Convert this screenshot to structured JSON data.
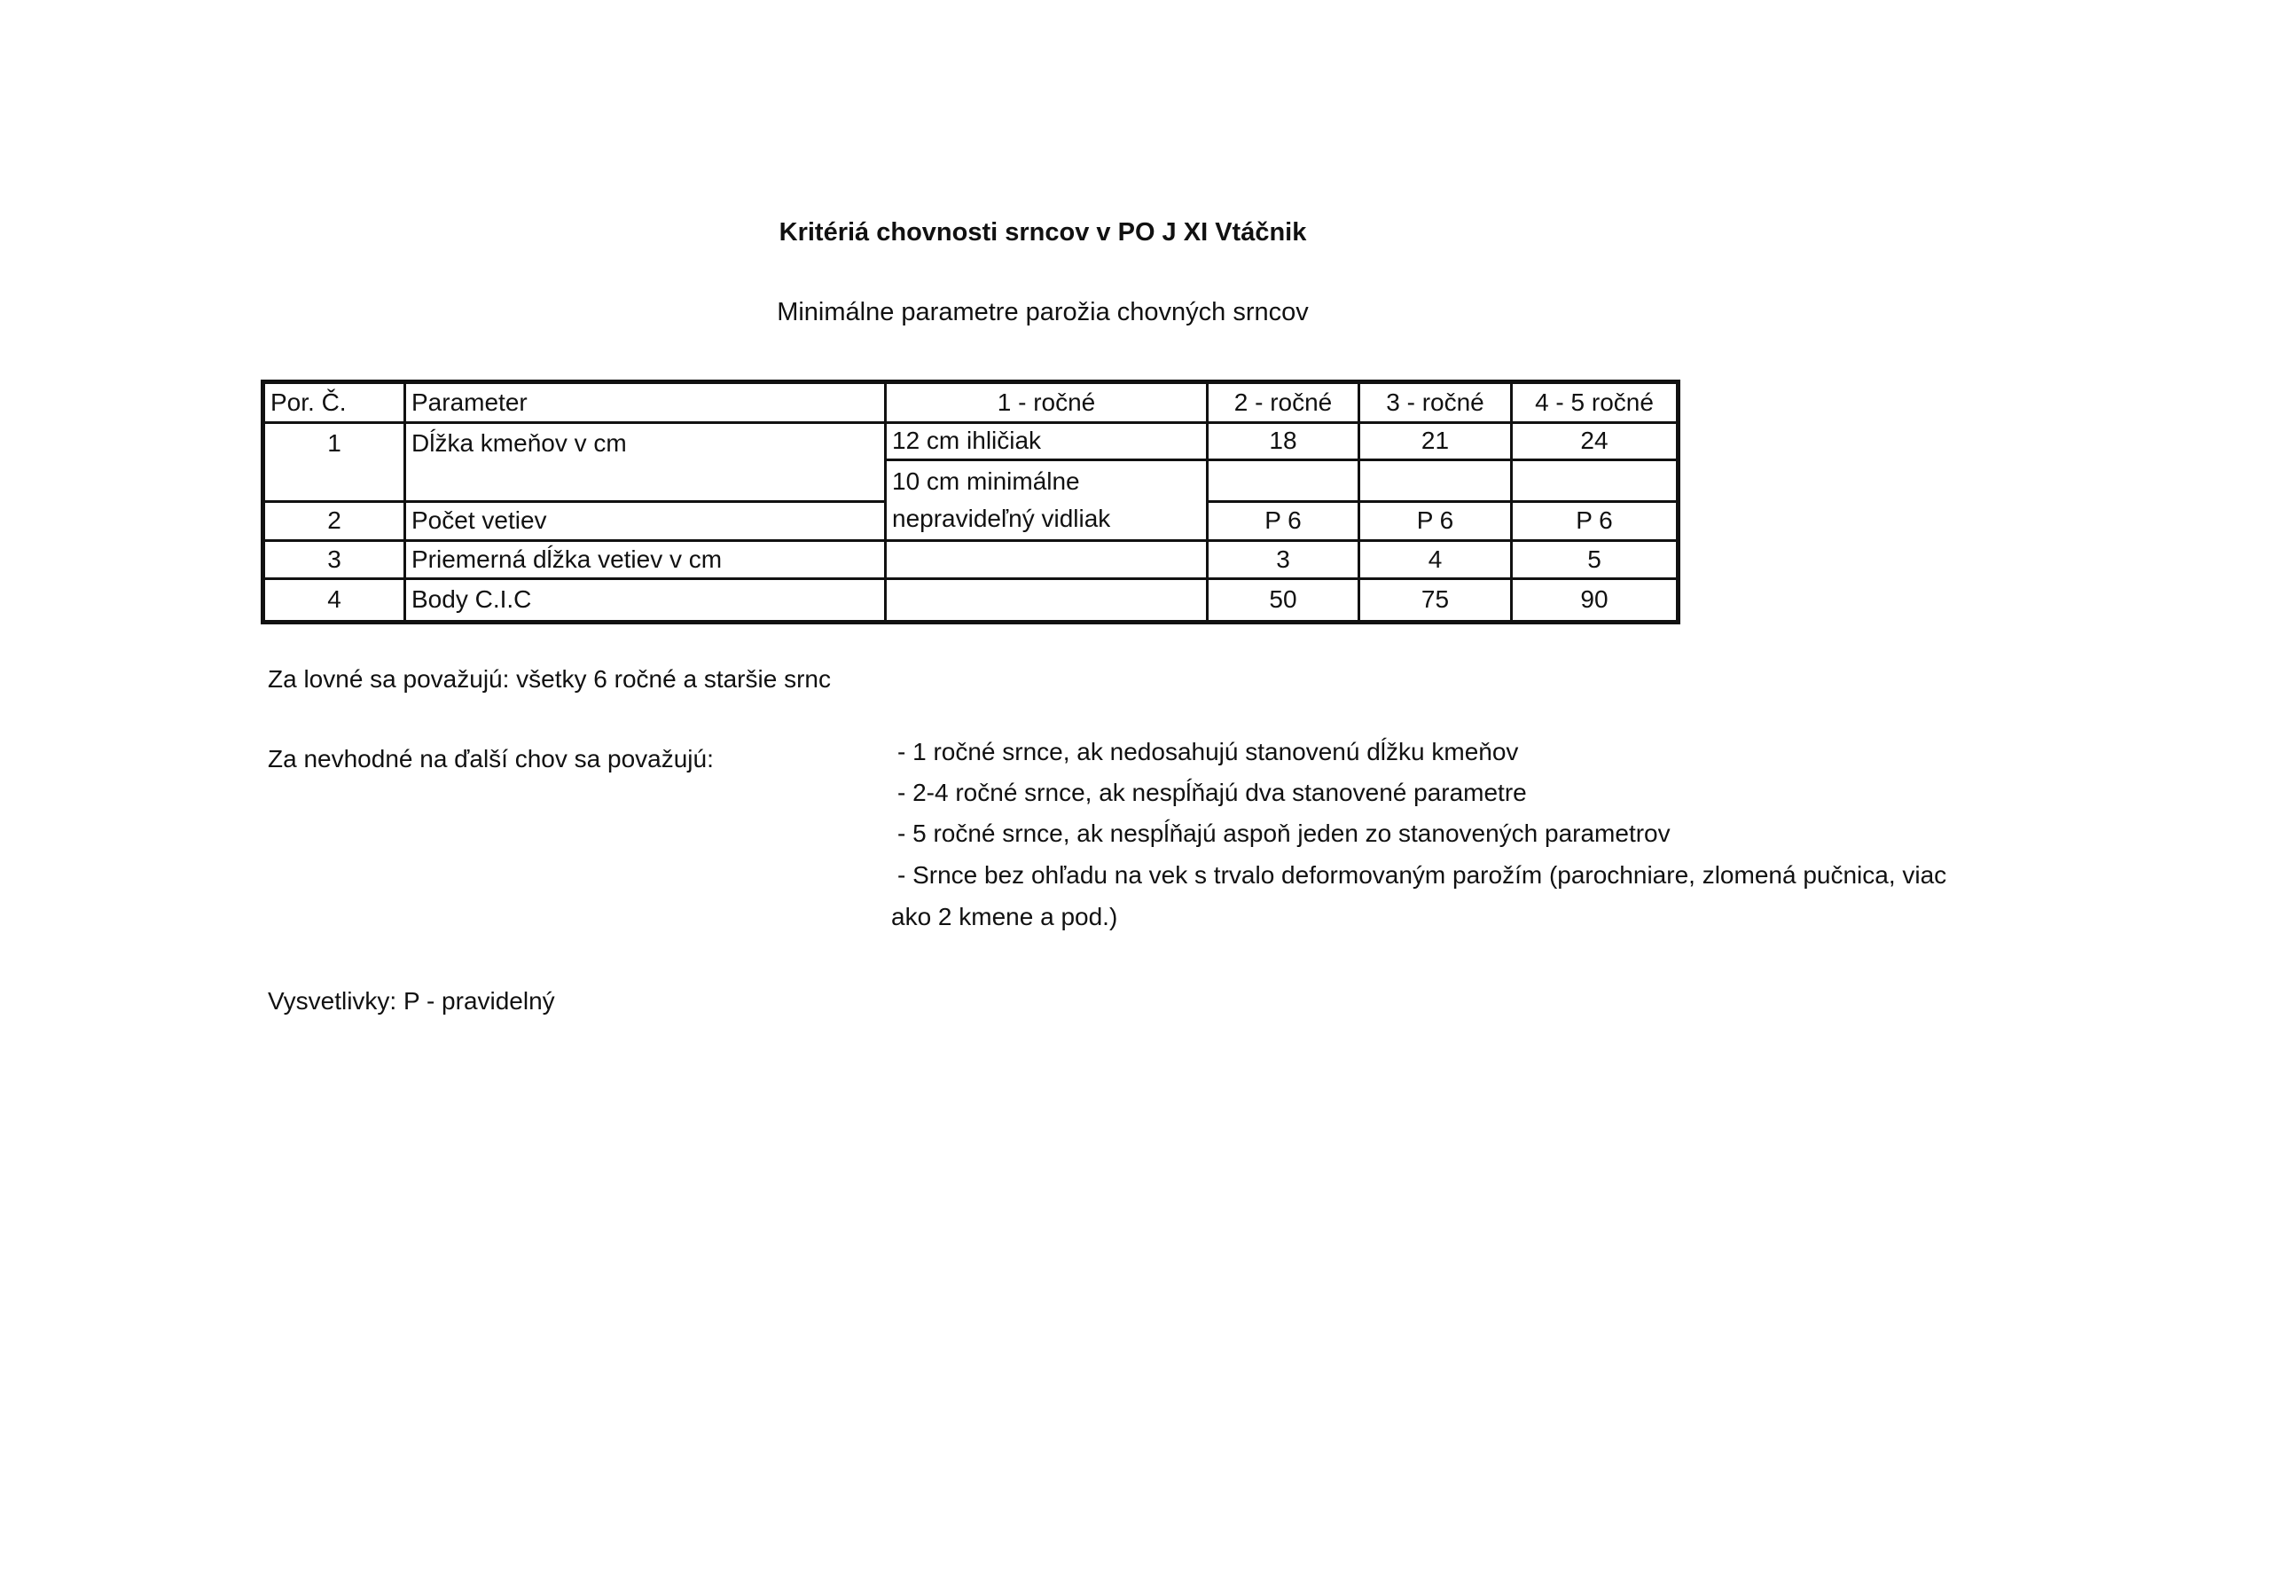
{
  "title": "Kritériá chovnosti srncov v PO J XI Vtáčnik",
  "subtitle": "Minimálne parametre parožia chovných srncov",
  "table": {
    "headers": [
      "Por. Č.",
      "Parameter",
      "1 - ročné",
      "2 - ročné",
      "3 - ročné",
      "4 - 5 ročné"
    ],
    "rows": [
      {
        "num": "1",
        "param": "Dĺžka kmeňov v cm",
        "y1a": "12 cm ihličiak",
        "y1b": "10 cm minimálne nepravideľný vidliak",
        "y2": "18",
        "y3": "21",
        "y45": "24"
      },
      {
        "num": "2",
        "param": "Počet vetiev",
        "y2": "P 6",
        "y3": "P 6",
        "y45": "P 6"
      },
      {
        "num": "3",
        "param": "Priemerná dĺžka vetiev v cm",
        "y1": "",
        "y2": "3",
        "y3": "4",
        "y45": "5"
      },
      {
        "num": "4",
        "param": "Body C.I.C",
        "y1": "",
        "y2": "50",
        "y3": "75",
        "y45": "90"
      }
    ]
  },
  "huntable": "Za lovné sa považujú: všetky 6 ročné a staršie srnc",
  "unsuitable": {
    "label": "Za nevhodné na ďalší chov sa považujú:",
    "items": [
      "- 1 ročné srnce, ak nedosahujú stanovenú dĺžku kmeňov",
      "- 2-4 ročné srnce, ak nespĺňajú dva stanovené parametre",
      "- 5 ročné srnce, ak nespĺňajú aspoň jeden zo stanovených parametrov",
      "- Srnce bez ohľadu na vek s trvalo deformovaným parožím (parochniare, zlomená pučnica, viac",
      "ako 2 kmene a pod.)"
    ]
  },
  "legend": "Vysvetlivky: P - pravidelný"
}
